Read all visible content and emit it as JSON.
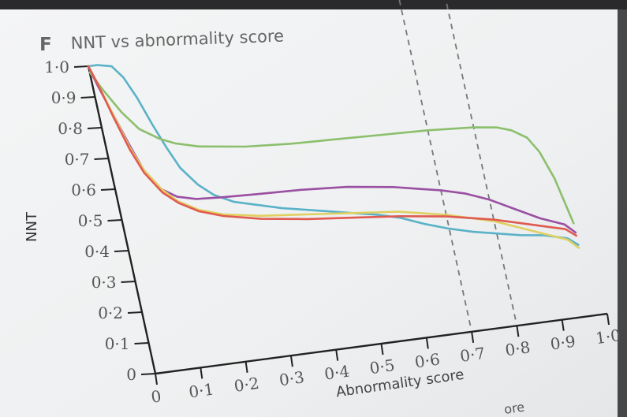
{
  "panel": {
    "letter": "F",
    "title": "NNT vs abnormality score"
  },
  "page_fragment": "ore",
  "chart_data": {
    "type": "line",
    "xlabel": "Abnormality score",
    "ylabel": "NNT",
    "xlim": [
      0,
      1
    ],
    "ylim": [
      0,
      1
    ],
    "x_ticks": [
      0,
      0.1,
      0.2,
      0.3,
      0.4,
      0.5,
      0.6,
      0.7,
      0.8,
      0.9,
      1.0
    ],
    "x_tick_labels": [
      "0",
      "0·1",
      "0·2",
      "0·3",
      "0·4",
      "0·5",
      "0·6",
      "0·7",
      "0·8",
      "0·9",
      "1·0"
    ],
    "y_ticks": [
      0,
      0.1,
      0.2,
      0.3,
      0.4,
      0.5,
      0.6,
      0.7,
      0.8,
      0.9,
      1.0
    ],
    "y_tick_labels": [
      "0",
      "0·1",
      "0·2",
      "0·3",
      "0·4",
      "0·5",
      "0·6",
      "0·7",
      "0·8",
      "0·9",
      "1·0"
    ],
    "grid": false,
    "legend": "none",
    "reference_lines": [
      {
        "x": 0.7,
        "style": "dashed"
      },
      {
        "x": 0.8,
        "style": "dashed"
      }
    ],
    "series": [
      {
        "color": "#5ab2c8",
        "x": [
          0,
          0.02,
          0.05,
          0.07,
          0.09,
          0.11,
          0.13,
          0.15,
          0.18,
          0.21,
          0.25,
          0.3,
          0.35,
          0.4,
          0.45,
          0.5,
          0.55,
          0.6,
          0.65,
          0.7,
          0.75,
          0.8,
          0.85,
          0.9,
          0.95,
          0.97
        ],
        "y": [
          1.0,
          1.0,
          0.99,
          0.95,
          0.88,
          0.79,
          0.71,
          0.64,
          0.58,
          0.54,
          0.51,
          0.49,
          0.47,
          0.455,
          0.44,
          0.425,
          0.41,
          0.39,
          0.36,
          0.335,
          0.315,
          0.3,
          0.285,
          0.275,
          0.255,
          0.23
        ]
      },
      {
        "color": "#8cbf6c",
        "x": [
          0,
          0.02,
          0.05,
          0.08,
          0.12,
          0.15,
          0.2,
          0.3,
          0.4,
          0.5,
          0.6,
          0.7,
          0.8,
          0.85,
          0.88,
          0.91,
          0.93,
          0.95,
          0.97
        ],
        "y": [
          0.98,
          0.92,
          0.84,
          0.78,
          0.74,
          0.72,
          0.7,
          0.68,
          0.67,
          0.665,
          0.66,
          0.655,
          0.645,
          0.635,
          0.62,
          0.59,
          0.54,
          0.45,
          0.3
        ]
      },
      {
        "color": "#9a4fa2",
        "x": [
          0,
          0.01,
          0.03,
          0.05,
          0.07,
          0.1,
          0.13,
          0.17,
          0.22,
          0.3,
          0.4,
          0.5,
          0.55,
          0.6,
          0.65,
          0.7,
          0.75,
          0.8,
          0.85,
          0.9,
          0.95,
          0.97
        ],
        "y": [
          1.0,
          0.94,
          0.84,
          0.74,
          0.65,
          0.58,
          0.55,
          0.535,
          0.53,
          0.525,
          0.52,
          0.51,
          0.5,
          0.49,
          0.475,
          0.46,
          0.44,
          0.41,
          0.37,
          0.33,
          0.3,
          0.27
        ]
      },
      {
        "color": "#e0d060",
        "x": [
          0,
          0.01,
          0.03,
          0.05,
          0.07,
          0.1,
          0.13,
          0.17,
          0.22,
          0.3,
          0.4,
          0.5,
          0.6,
          0.7,
          0.75,
          0.8,
          0.85,
          0.9,
          0.95,
          0.97
        ],
        "y": [
          1.0,
          0.95,
          0.84,
          0.73,
          0.65,
          0.58,
          0.535,
          0.5,
          0.475,
          0.455,
          0.44,
          0.425,
          0.41,
          0.38,
          0.36,
          0.34,
          0.31,
          0.28,
          0.25,
          0.22
        ]
      },
      {
        "color": "#e05a50",
        "x": [
          0,
          0.01,
          0.03,
          0.05,
          0.07,
          0.1,
          0.13,
          0.17,
          0.22,
          0.3,
          0.4,
          0.5,
          0.6,
          0.7,
          0.75,
          0.8,
          0.85,
          0.9,
          0.95,
          0.97
        ],
        "y": [
          1.0,
          0.95,
          0.83,
          0.72,
          0.64,
          0.57,
          0.53,
          0.495,
          0.47,
          0.445,
          0.425,
          0.41,
          0.395,
          0.375,
          0.36,
          0.345,
          0.325,
          0.305,
          0.285,
          0.26
        ]
      }
    ]
  }
}
